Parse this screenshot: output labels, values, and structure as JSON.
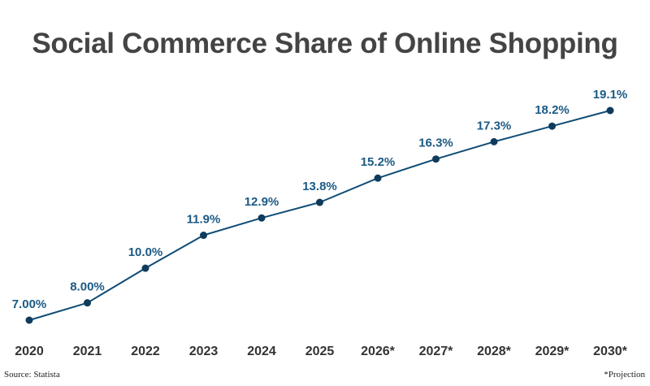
{
  "title": "Social Commerce Share of Online Shopping",
  "source": "Source: Statista",
  "footnote": "*Projection",
  "colors": {
    "line": "#0f4c75",
    "marker": "#0f3b5c",
    "data_label": "#1b5a84",
    "tick_label": "#333333",
    "title": "#444444"
  },
  "chart_data": {
    "type": "line",
    "title": "Social Commerce Share of Online Shopping",
    "xlabel": "",
    "ylabel": "",
    "grid": false,
    "legend": "none",
    "categories": [
      "2020",
      "2021",
      "2022",
      "2023",
      "2024",
      "2025",
      "2026*",
      "2027*",
      "2028*",
      "2029*",
      "2030*"
    ],
    "values": [
      7.0,
      8.0,
      10.0,
      11.9,
      12.9,
      13.8,
      15.2,
      16.3,
      17.3,
      18.2,
      19.1
    ],
    "data_labels": [
      "7.00%",
      "8.00%",
      "10.0%",
      "11.9%",
      "12.9%",
      "13.8%",
      "15.2%",
      "16.3%",
      "17.3%",
      "18.2%",
      "19.1%"
    ],
    "ylim": [
      7.0,
      19.1
    ]
  }
}
